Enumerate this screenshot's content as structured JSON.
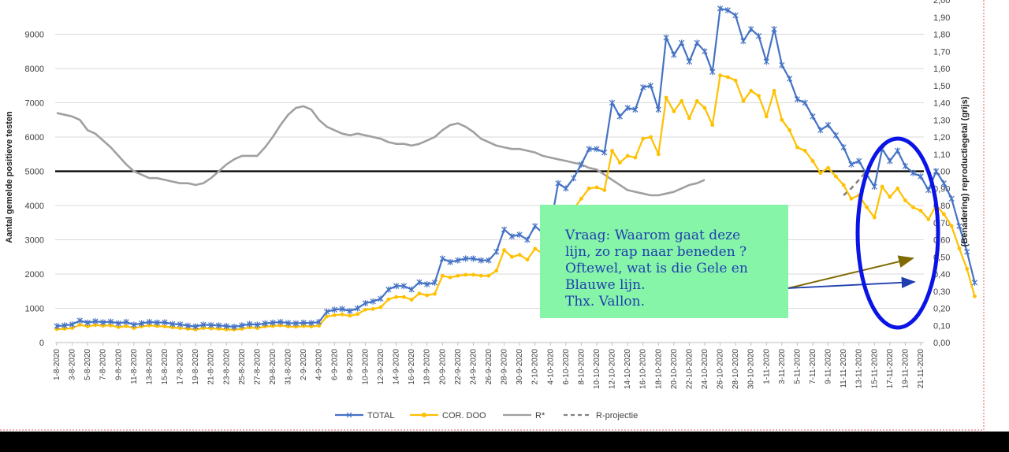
{
  "chart_data": {
    "type": "line",
    "title": "",
    "ylabel": "Aantal gemelde positieve testen",
    "y2label": "(Benadering) reproductiegetal (grijs)",
    "ylim": [
      0,
      10000
    ],
    "y2lim": [
      0,
      2.0
    ],
    "yticks": [
      "0",
      "1000",
      "2000",
      "3000",
      "4000",
      "5000",
      "6000",
      "7000",
      "8000",
      "9000"
    ],
    "y2ticks": [
      "0,00",
      "0,10",
      "0,20",
      "0,30",
      "0,40",
      "0,50",
      "0,60",
      "0,70",
      "0,80",
      "0,90",
      "1,00",
      "1,10",
      "1,20",
      "1,30",
      "1,40",
      "1,50",
      "1,60",
      "1,70",
      "1,80",
      "1,90",
      "2,00"
    ],
    "reference_line": 5000,
    "x_start": "2020-08-01",
    "x_end": "2020-11-21",
    "xticks": [
      "1-8-2020",
      "3-8-2020",
      "5-8-2020",
      "7-8-2020",
      "9-8-2020",
      "11-8-2020",
      "13-8-2020",
      "15-8-2020",
      "17-8-2020",
      "19-8-2020",
      "21-8-2020",
      "23-8-2020",
      "25-8-2020",
      "27-8-2020",
      "29-8-2020",
      "31-8-2020",
      "2-9-2020",
      "4-9-2020",
      "6-9-2020",
      "8-9-2020",
      "10-9-2020",
      "12-9-2020",
      "14-9-2020",
      "16-9-2020",
      "18-9-2020",
      "20-9-2020",
      "22-9-2020",
      "24-9-2020",
      "26-9-2020",
      "28-9-2020",
      "30-9-2020",
      "2-10-2020",
      "4-10-2020",
      "6-10-2020",
      "8-10-2020",
      "10-10-2020",
      "12-10-2020",
      "14-10-2020",
      "16-10-2020",
      "18-10-2020",
      "20-10-2020",
      "22-10-2020",
      "24-10-2020",
      "26-10-2020",
      "28-10-2020",
      "30-10-2020",
      "1-11-2020",
      "3-11-2020",
      "5-11-2020",
      "7-11-2020",
      "9-11-2020",
      "11-11-2020",
      "13-11-2020",
      "15-11-2020",
      "17-11-2020",
      "19-11-2020",
      "21-11-2020"
    ],
    "grid": true,
    "legend_position": "bottom",
    "series": [
      {
        "name": "TOTAL",
        "axis": "left",
        "color": "#4472c4",
        "marker": "star",
        "values": [
          480,
          500,
          530,
          640,
          580,
          620,
          590,
          610,
          560,
          600,
          520,
          560,
          600,
          580,
          590,
          540,
          530,
          490,
          470,
          520,
          510,
          500,
          480,
          460,
          500,
          540,
          520,
          560,
          580,
          600,
          570,
          560,
          580,
          570,
          600,
          900,
          960,
          980,
          920,
          1000,
          1150,
          1200,
          1280,
          1550,
          1650,
          1650,
          1550,
          1760,
          1700,
          1750,
          2450,
          2350,
          2400,
          2450,
          2450,
          2400,
          2400,
          2650,
          3300,
          3100,
          3150,
          3000,
          3400,
          3200,
          3400,
          4650,
          4500,
          4800,
          5200,
          5650,
          5650,
          5550,
          7000,
          6600,
          6850,
          6800,
          7450,
          7500,
          6800,
          8900,
          8400,
          8750,
          8200,
          8750,
          8500,
          7900,
          9750,
          9700,
          9550,
          8800,
          9150,
          8950,
          8200,
          9150,
          8100,
          7700,
          7100,
          7000,
          6600,
          6200,
          6350,
          6050,
          5700,
          5200,
          5300,
          4900,
          4550,
          5650,
          5300,
          5600,
          5150,
          4950,
          4850,
          4450,
          5000,
          4650,
          4200,
          3400,
          2650,
          1750
        ]
      },
      {
        "name": "COR. DOO",
        "axis": "left",
        "color": "#ffc000",
        "marker": "dot",
        "values": [
          390,
          400,
          420,
          520,
          470,
          510,
          490,
          500,
          450,
          480,
          420,
          470,
          500,
          480,
          470,
          440,
          420,
          400,
          380,
          420,
          410,
          400,
          380,
          380,
          400,
          440,
          420,
          470,
          480,
          500,
          470,
          460,
          480,
          470,
          490,
          760,
          800,
          820,
          780,
          830,
          960,
          980,
          1030,
          1260,
          1330,
          1330,
          1250,
          1430,
          1380,
          1420,
          1950,
          1900,
          1950,
          1980,
          1980,
          1950,
          1950,
          2100,
          2700,
          2500,
          2560,
          2420,
          2740,
          2600,
          2720,
          3750,
          3600,
          3900,
          4200,
          4500,
          4530,
          4450,
          5600,
          5250,
          5450,
          5400,
          5950,
          6000,
          5500,
          7150,
          6750,
          7050,
          6550,
          7050,
          6850,
          6350,
          7800,
          7750,
          7650,
          7050,
          7350,
          7200,
          6600,
          7350,
          6500,
          6200,
          5700,
          5600,
          5300,
          4950,
          5100,
          4850,
          4600,
          4200,
          4300,
          3950,
          3650,
          4550,
          4250,
          4500,
          4150,
          3950,
          3850,
          3600,
          4000,
          3750,
          3400,
          2750,
          2150,
          1350
        ]
      },
      {
        "name": "R*",
        "axis": "right",
        "color": "#a0a0a0",
        "marker": "none",
        "values": [
          1.34,
          1.33,
          1.32,
          1.3,
          1.24,
          1.22,
          1.18,
          1.14,
          1.09,
          1.04,
          1.0,
          0.98,
          0.96,
          0.96,
          0.95,
          0.94,
          0.93,
          0.93,
          0.92,
          0.93,
          0.96,
          1.0,
          1.04,
          1.07,
          1.09,
          1.09,
          1.09,
          1.14,
          1.2,
          1.27,
          1.33,
          1.37,
          1.38,
          1.36,
          1.3,
          1.26,
          1.24,
          1.22,
          1.21,
          1.22,
          1.21,
          1.2,
          1.19,
          1.17,
          1.16,
          1.16,
          1.15,
          1.16,
          1.18,
          1.2,
          1.24,
          1.27,
          1.28,
          1.26,
          1.23,
          1.19,
          1.17,
          1.15,
          1.14,
          1.13,
          1.13,
          1.12,
          1.11,
          1.09,
          1.08,
          1.07,
          1.06,
          1.05,
          1.04,
          1.02,
          1.01,
          0.98,
          0.95,
          0.92,
          0.89,
          0.88,
          0.87,
          0.86,
          0.86,
          0.87,
          0.88,
          0.9,
          0.92,
          0.93,
          0.95
        ]
      },
      {
        "name": "R-projectie",
        "axis": "right",
        "color": "#808080",
        "marker": "none",
        "dashed": true,
        "values": [
          0.86,
          0.9,
          0.95,
          1.0
        ]
      }
    ],
    "annotations": [
      {
        "type": "note",
        "lines": [
          "Vraag: Waarom gaat deze",
          "lijn, zo rap naar beneden ?",
          "Oftewel, wat is die Gele en",
          "Blauwe lijn.",
          "Thx.  Vallon."
        ]
      },
      {
        "type": "ellipse",
        "color": "#0000ff"
      }
    ]
  },
  "colors": {
    "note_bg": "#86f5a8",
    "note_text": "#1f3fb0",
    "ellipse": "#0a14e6",
    "ref_line": "#000000",
    "arrow_olive": "#7f6a00",
    "arrow_blue": "#1f3fb0"
  }
}
